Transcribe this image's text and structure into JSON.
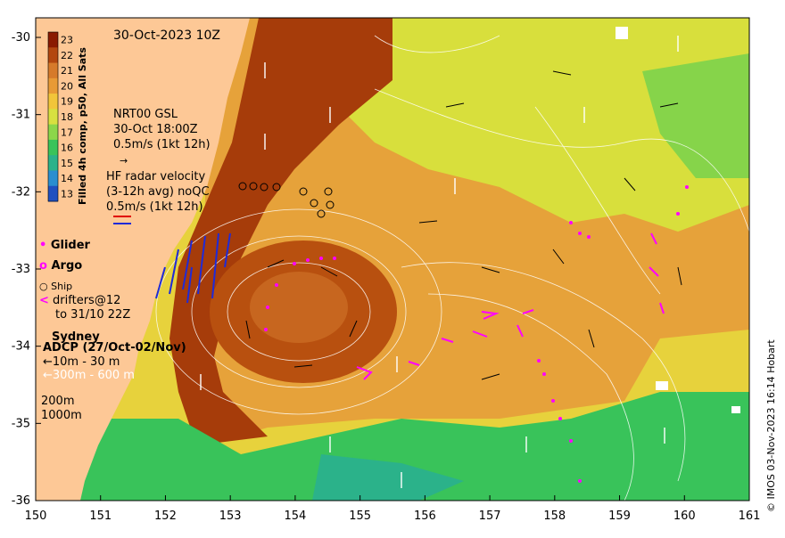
{
  "title": "30-Oct-2023 10Z",
  "colorbar": {
    "title": "Filled 4h comp, p50, All Sats",
    "values": [
      "23",
      "22",
      "21",
      "20",
      "19",
      "18",
      "17",
      "16",
      "15",
      "14",
      "13"
    ],
    "colors": [
      "#8a1a00",
      "#b3470f",
      "#d67a2a",
      "#e89a35",
      "#f2c53a",
      "#d8e040",
      "#8cd64a",
      "#39c35a",
      "#2bb28a",
      "#2a8ed0",
      "#2050c0"
    ]
  },
  "axes": {
    "x_ticks": [
      "150",
      "151",
      "152",
      "153",
      "154",
      "155",
      "156",
      "157",
      "158",
      "159",
      "160",
      "161"
    ],
    "y_ticks": [
      "-30",
      "-31",
      "-32",
      "-33",
      "-34",
      "-35",
      "-36"
    ]
  },
  "legend": {
    "nrt_line1": "NRT00 GSL",
    "nrt_line2": "30-Oct 18:00Z",
    "nrt_line3": "0.5m/s (1kt 12h)",
    "hf_line1": "HF radar velocity",
    "hf_line2": "(3-12h avg) noQC",
    "hf_line3": "0.5m/s (1kt 12h)",
    "glider": "Glider",
    "argo": "Argo",
    "ship": "Ship",
    "drifters_line1": "drifters@12",
    "drifters_line2": "to 31/10 22Z",
    "city": "Sydney",
    "adcp_title": "ADCP (27/Oct-02/Nov)",
    "adcp_line1": "←10m - 30 m",
    "adcp_line2": "←300m - 600 m",
    "depth1": "200m",
    "depth2": "1000m"
  },
  "credit": "© IMOS 03-Nov-2023 16:14 Hobart",
  "colors": {
    "land": "#fdc896",
    "warm_core": "#b4470f",
    "drifter": "#ff00ff",
    "hf_radar": "#1f2ad8",
    "contour": "#ffffff"
  }
}
